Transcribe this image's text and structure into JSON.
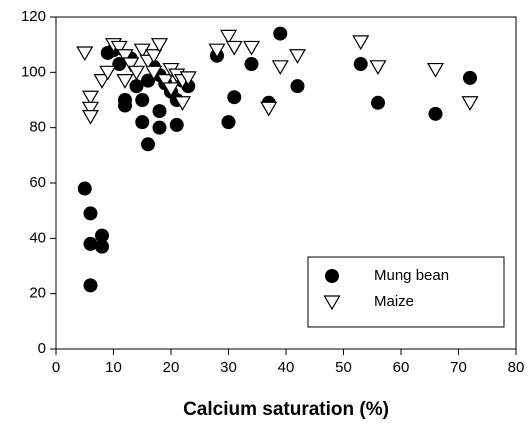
{
  "chart_data": {
    "type": "scatter",
    "x_label": "Calcium saturation (%)",
    "xlim": [
      0,
      80
    ],
    "xticks": [
      0,
      10,
      20,
      30,
      40,
      50,
      60,
      70,
      80
    ],
    "ylim": [
      0,
      120
    ],
    "yticks": [
      0,
      20,
      40,
      60,
      80,
      100,
      120
    ],
    "legend": "lower right",
    "series": [
      {
        "name": "Mung bean",
        "color": "#000000",
        "marker": "circle",
        "x": [
          5,
          6,
          6,
          6,
          8,
          8,
          9,
          10,
          11,
          12,
          12,
          13,
          14,
          15,
          15,
          16,
          16,
          17,
          18,
          18,
          18,
          19,
          20,
          21,
          21,
          22,
          23,
          28,
          30,
          31,
          34,
          37,
          39,
          42,
          53,
          56,
          66,
          72
        ],
        "values": [
          58,
          49,
          38,
          23,
          41,
          37,
          107,
          108,
          103,
          88,
          90,
          105,
          95,
          90,
          82,
          74,
          97,
          102,
          86,
          80,
          99,
          96,
          93,
          81,
          90,
          97,
          95,
          106,
          82,
          91,
          103,
          89,
          114,
          95,
          103,
          89,
          85,
          98
        ]
      },
      {
        "name": "Maize",
        "color": "#000000",
        "marker": "triangle-down",
        "x": [
          5,
          6,
          6,
          6,
          8,
          9,
          10,
          11,
          12,
          12,
          13,
          14,
          15,
          16,
          17,
          17,
          18,
          19,
          20,
          20,
          21,
          22,
          22,
          23,
          28,
          30,
          31,
          34,
          37,
          39,
          42,
          53,
          56,
          66,
          72
        ],
        "values": [
          107,
          91,
          87,
          84,
          97,
          100,
          110,
          109,
          106,
          97,
          103,
          100,
          108,
          104,
          106,
          100,
          110,
          97,
          101,
          94,
          99,
          89,
          97,
          98,
          108,
          113,
          109,
          109,
          87,
          102,
          106,
          111,
          102,
          101,
          89
        ]
      }
    ]
  }
}
